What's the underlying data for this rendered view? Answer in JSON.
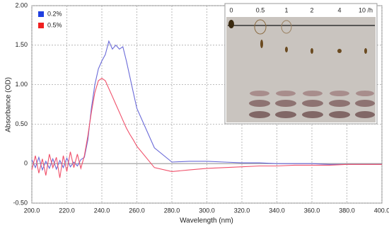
{
  "chart_data": {
    "type": "line",
    "x_label": "Wavelength (nm)",
    "y_label": "Absorbance (OD)",
    "x": [
      200,
      202,
      204,
      206,
      208,
      210,
      212,
      214,
      216,
      218,
      220,
      222,
      224,
      226,
      228,
      230,
      232,
      234,
      236,
      238,
      240,
      242,
      244,
      246,
      248,
      250,
      252,
      254,
      256,
      258,
      260,
      270,
      280,
      290,
      300,
      310,
      320,
      330,
      340,
      350,
      360,
      370,
      380,
      390,
      400
    ],
    "series": [
      {
        "name": "0.2%",
        "color": "#6a6ad8",
        "legend_color": "#1f3fe0",
        "values": [
          0.05,
          -0.05,
          0.08,
          -0.08,
          0.03,
          -0.06,
          0.06,
          -0.07,
          0.04,
          -0.05,
          0.07,
          -0.04,
          0.02,
          -0.03,
          0.05,
          0.08,
          0.3,
          0.7,
          1.0,
          1.2,
          1.3,
          1.38,
          1.55,
          1.45,
          1.5,
          1.45,
          1.48,
          1.3,
          1.1,
          0.9,
          0.7,
          0.2,
          0.02,
          0.03,
          0.03,
          0.02,
          0.01,
          0.01,
          0,
          0,
          0,
          -0.01,
          -0.01,
          -0.01,
          -0.01
        ]
      },
      {
        "name": "0.5%",
        "color": "#f0506a",
        "legend_color": "#f02020",
        "values": [
          -0.08,
          0.1,
          -0.12,
          0.06,
          -0.15,
          0.12,
          -0.05,
          0.08,
          -0.18,
          0.1,
          -0.1,
          0.15,
          -0.05,
          0.12,
          -0.06,
          0.1,
          0.35,
          0.65,
          0.9,
          1.05,
          1.08,
          1.05,
          0.95,
          0.85,
          0.75,
          0.65,
          0.55,
          0.45,
          0.37,
          0.3,
          0.22,
          -0.05,
          -0.1,
          -0.08,
          -0.06,
          -0.05,
          -0.04,
          -0.03,
          -0.03,
          -0.02,
          -0.02,
          -0.02,
          -0.01,
          -0.01,
          -0.01
        ]
      }
    ],
    "xlim": [
      200,
      400
    ],
    "xticks": [
      {
        "value": 200,
        "label": "200.0"
      },
      {
        "value": 220,
        "label": "220.0"
      },
      {
        "value": 240,
        "label": "240.0"
      },
      {
        "value": 260,
        "label": "260.0"
      },
      {
        "value": 280,
        "label": "280.0"
      },
      {
        "value": 300,
        "label": "300.0"
      },
      {
        "value": 320,
        "label": "320.0"
      },
      {
        "value": 340,
        "label": "340.0"
      },
      {
        "value": 360,
        "label": "360.0"
      },
      {
        "value": 380,
        "label": "380.0"
      },
      {
        "value": 400,
        "label": "400.0"
      }
    ],
    "ylim": [
      -0.5,
      2
    ],
    "yticks": [
      {
        "value": -0.5,
        "label": "-0.50"
      },
      0,
      {
        "value": 0.5,
        "label": "0.50"
      },
      {
        "value": 1,
        "label": "1.00"
      },
      {
        "value": 1.5,
        "label": "1.50"
      },
      {
        "value": 2,
        "label": "2.00"
      }
    ],
    "grid": true,
    "legend": "upper left",
    "inset_labels": [
      "0",
      "0.5",
      "1",
      "2",
      "4",
      "10 /h"
    ]
  }
}
